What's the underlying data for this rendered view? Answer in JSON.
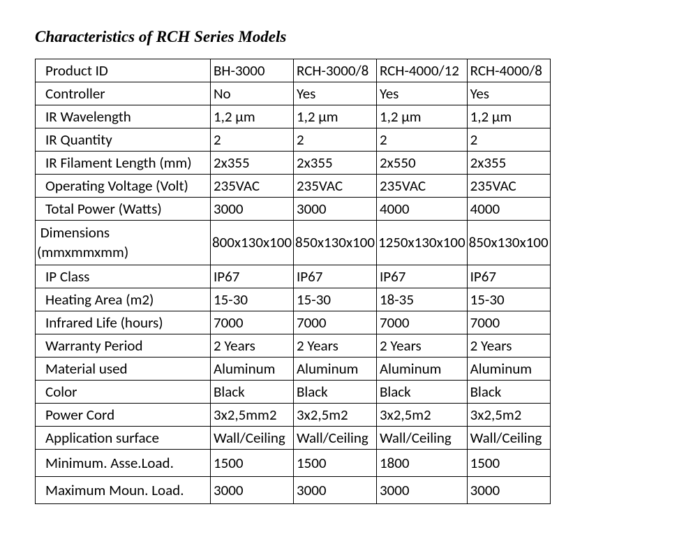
{
  "title": "Characteristics of RCH Series Models",
  "columns": [
    "BH-3000",
    "RCH-3000/8",
    "RCH-4000/12",
    "RCH-4000/8"
  ],
  "rows": [
    {
      "label": "Product ID",
      "values": [
        "BH-3000",
        "RCH-3000/8",
        "RCH-4000/12",
        "RCH-4000/8"
      ]
    },
    {
      "label": "Controller",
      "values": [
        "No",
        "Yes",
        "Yes",
        "Yes"
      ]
    },
    {
      "label": "IR Wavelength",
      "values": [
        "1,2 µm",
        "1,2 µm",
        "1,2 µm",
        "1,2 µm"
      ]
    },
    {
      "label": "IR Quantity",
      "values": [
        "2",
        "2",
        "2",
        "2"
      ]
    },
    {
      "label": "IR Filament Length (mm)",
      "values": [
        "2x355",
        "2x355",
        "2x550",
        "2x355"
      ]
    },
    {
      "label": "Operating Voltage (Volt)",
      "values": [
        "235VAC",
        "235VAC",
        "235VAC",
        "235VAC"
      ]
    },
    {
      "label": "Total Power (Watts)",
      "values": [
        "3000",
        "3000",
        "4000",
        "4000"
      ]
    },
    {
      "label": "Dimensions\n(mmxmmxmm)",
      "values": [
        "800x130x100",
        "850x130x100",
        "1250x130x100",
        "850x130x100"
      ],
      "dim": true
    },
    {
      "label": "IP Class",
      "values": [
        "IP67",
        "IP67",
        "IP67",
        "IP67"
      ]
    },
    {
      "label": "Heating Area (m2)",
      "values": [
        "15-30",
        "15-30",
        "18-35",
        "15-30"
      ]
    },
    {
      "label": "Infrared Life (hours)",
      "values": [
        "7000",
        "7000",
        "7000",
        "7000"
      ]
    },
    {
      "label": "Warranty Period",
      "values": [
        "2 Years",
        "2 Years",
        "2 Years",
        "2 Years"
      ]
    },
    {
      "label": "Material used",
      "values": [
        "Aluminum",
        "Aluminum",
        "Aluminum",
        "Aluminum"
      ]
    },
    {
      "label": "Color",
      "values": [
        "Black",
        "Black",
        "Black",
        "Black"
      ]
    },
    {
      "label": "Power Cord",
      "values": [
        "3x2,5mm2",
        "3x2,5m2",
        "3x2,5m2",
        "3x2,5m2"
      ]
    },
    {
      "label": "Application surface",
      "values": [
        "Wall/Ceiling",
        "Wall/Ceiling",
        "Wall/Ceiling",
        "Wall/Ceiling"
      ]
    },
    {
      "label": "Minimum. Asse.Load.",
      "values": [
        "1500",
        "1500",
        "1800",
        "1500"
      ],
      "tall": true
    },
    {
      "label": "Maximum   Moun. Load.",
      "values": [
        "3000",
        "3000",
        "3000",
        "3000"
      ],
      "tall": true
    }
  ]
}
